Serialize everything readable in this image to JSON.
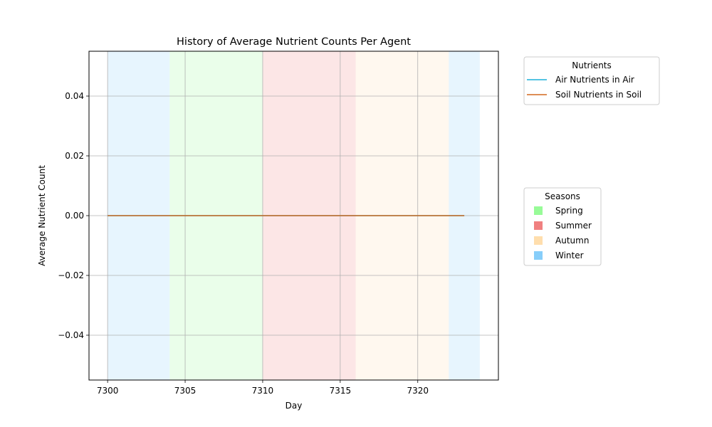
{
  "chart_data": {
    "type": "line",
    "title": "History of Average Nutrient Counts Per Agent",
    "xlabel": "Day",
    "ylabel": "Average Nutrient Count",
    "xlim": [
      7298.8,
      7325.2
    ],
    "ylim": [
      -0.055,
      0.055
    ],
    "x_ticks": [
      7300,
      7305,
      7310,
      7315,
      7320
    ],
    "y_ticks": [
      -0.04,
      -0.02,
      0.0,
      0.02,
      0.04
    ],
    "y_tick_labels": [
      "−0.04",
      "−0.02",
      "0.00",
      "0.02",
      "0.04"
    ],
    "grid": true,
    "x": [
      7300,
      7301,
      7302,
      7303,
      7304,
      7305,
      7306,
      7307,
      7308,
      7309,
      7310,
      7311,
      7312,
      7313,
      7314,
      7315,
      7316,
      7317,
      7318,
      7319,
      7320,
      7321,
      7322,
      7323
    ],
    "series": [
      {
        "name": "Air Nutrients in Air",
        "color": "#1cb0d8",
        "values": [
          0,
          0,
          0,
          0,
          0,
          0,
          0,
          0,
          0,
          0,
          0,
          0,
          0,
          0,
          0,
          0,
          0,
          0,
          0,
          0,
          0,
          0,
          0,
          0
        ]
      },
      {
        "name": "Soil Nutrients in Soil",
        "color": "#d2691e",
        "values": [
          0,
          0,
          0,
          0,
          0,
          0,
          0,
          0,
          0,
          0,
          0,
          0,
          0,
          0,
          0,
          0,
          0,
          0,
          0,
          0,
          0,
          0,
          0,
          0
        ]
      }
    ],
    "season_bands": [
      {
        "season": "Winter",
        "start": 7300,
        "end": 7304
      },
      {
        "season": "Spring",
        "start": 7304,
        "end": 7310
      },
      {
        "season": "Summer",
        "start": 7310,
        "end": 7316
      },
      {
        "season": "Autumn",
        "start": 7316,
        "end": 7322
      },
      {
        "season": "Winter",
        "start": 7322,
        "end": 7324
      }
    ],
    "band_opacity": 0.2,
    "legends": [
      {
        "title": "Nutrients",
        "placement": "outside-right-top",
        "entries": [
          {
            "label": "Air Nutrients in Air",
            "color": "#1cb0d8",
            "kind": "line"
          },
          {
            "label": "Soil Nutrients in Soil",
            "color": "#d2691e",
            "kind": "line"
          }
        ]
      },
      {
        "title": "Seasons",
        "placement": "outside-right-center",
        "entries": [
          {
            "label": "Spring",
            "color": "#98fb98",
            "kind": "patch"
          },
          {
            "label": "Summer",
            "color": "#f08080",
            "kind": "patch"
          },
          {
            "label": "Autumn",
            "color": "#ffdead",
            "kind": "patch"
          },
          {
            "label": "Winter",
            "color": "#87cefa",
            "kind": "patch"
          }
        ]
      }
    ]
  }
}
